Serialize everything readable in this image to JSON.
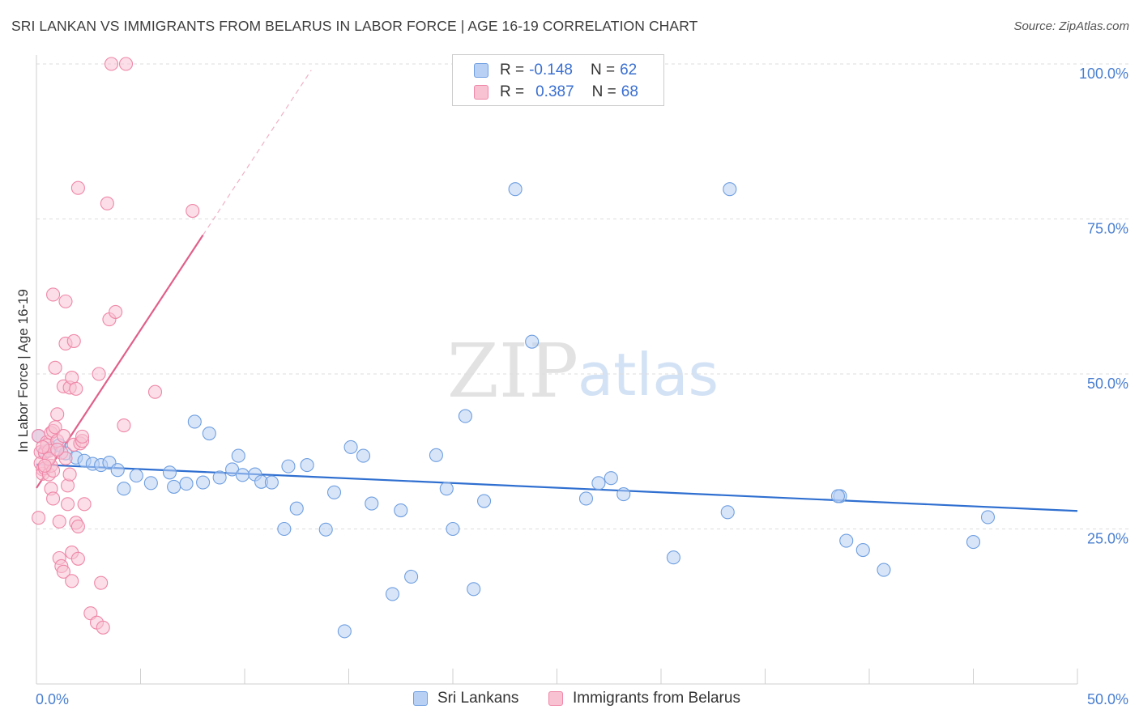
{
  "title": "SRI LANKAN VS IMMIGRANTS FROM BELARUS IN LABOR FORCE | AGE 16-19 CORRELATION CHART",
  "source": "Source: ZipAtlas.com",
  "watermark": {
    "zip": "ZIP",
    "atlas": "atlas"
  },
  "colors": {
    "blue_fill": "#b8d0f4",
    "blue_stroke": "#6f9fe0",
    "blue_line": "#2f6fd0",
    "pink_fill": "#f8c2d3",
    "pink_stroke": "#ef87a8",
    "pink_line": "#e0608a",
    "tick_text": "#4a7fd0",
    "grid": "#dddddd"
  },
  "legend": {
    "rows": [
      {
        "r_label": "R =",
        "r_value": "-0.148",
        "n_label": "N =",
        "n_value": "62"
      },
      {
        "r_label": "R =",
        "r_value": "0.387",
        "n_label": "N =",
        "n_value": "68"
      }
    ]
  },
  "bottom_legend": [
    "Sri Lankans",
    "Immigrants from Belarus"
  ],
  "chart_data": {
    "type": "scatter",
    "title": "SRI LANKAN VS IMMIGRANTS FROM BELARUS IN LABOR FORCE | AGE 16-19 CORRELATION CHART",
    "xlabel": "",
    "ylabel": "In Labor Force | Age 16-19",
    "xlim": [
      0,
      50
    ],
    "ylim": [
      0,
      100
    ],
    "x_tick_labels": [
      "0.0%",
      "50.0%"
    ],
    "y_ticks": [
      25,
      50,
      75,
      100
    ],
    "y_tick_labels": [
      "25.0%",
      "50.0%",
      "75.0%",
      "100.0%"
    ],
    "series": [
      {
        "name": "Sri Lankans",
        "color": "#6f9fe0",
        "trend": {
          "x": [
            0,
            50
          ],
          "y": [
            35.4,
            27.9
          ],
          "style": "solid"
        },
        "points": [
          [
            0.1,
            40.0
          ],
          [
            0.4,
            37.5
          ],
          [
            0.7,
            38.0
          ],
          [
            1.1,
            38.5
          ],
          [
            1.4,
            37.2
          ],
          [
            1.9,
            36.5
          ],
          [
            2.3,
            36.0
          ],
          [
            2.7,
            35.5
          ],
          [
            3.1,
            35.3
          ],
          [
            3.5,
            35.7
          ],
          [
            3.9,
            34.5
          ],
          [
            4.2,
            31.5
          ],
          [
            5.5,
            32.4
          ],
          [
            4.8,
            33.6
          ],
          [
            6.4,
            34.1
          ],
          [
            6.6,
            31.8
          ],
          [
            7.2,
            32.3
          ],
          [
            7.6,
            42.3
          ],
          [
            8.0,
            32.5
          ],
          [
            8.3,
            40.4
          ],
          [
            8.8,
            33.3
          ],
          [
            9.4,
            34.6
          ],
          [
            9.7,
            36.8
          ],
          [
            9.9,
            33.7
          ],
          [
            10.5,
            33.8
          ],
          [
            10.8,
            32.6
          ],
          [
            11.3,
            32.5
          ],
          [
            11.9,
            25.0
          ],
          [
            12.1,
            35.1
          ],
          [
            12.5,
            28.3
          ],
          [
            13.0,
            35.3
          ],
          [
            13.9,
            24.9
          ],
          [
            14.3,
            30.9
          ],
          [
            14.8,
            8.5
          ],
          [
            15.1,
            38.2
          ],
          [
            15.7,
            36.8
          ],
          [
            16.1,
            29.1
          ],
          [
            17.1,
            14.5
          ],
          [
            17.5,
            28.0
          ],
          [
            18.0,
            17.3
          ],
          [
            19.2,
            36.9
          ],
          [
            19.7,
            31.5
          ],
          [
            20.0,
            25.0
          ],
          [
            20.6,
            43.2
          ],
          [
            21.0,
            15.3
          ],
          [
            21.5,
            29.5
          ],
          [
            23.0,
            79.8
          ],
          [
            23.8,
            55.2
          ],
          [
            26.4,
            29.9
          ],
          [
            27.0,
            32.4
          ],
          [
            27.6,
            33.2
          ],
          [
            28.2,
            30.6
          ],
          [
            30.6,
            20.4
          ],
          [
            33.3,
            79.8
          ],
          [
            33.2,
            27.7
          ],
          [
            38.6,
            30.3
          ],
          [
            38.5,
            30.3
          ],
          [
            38.9,
            23.1
          ],
          [
            39.7,
            21.6
          ],
          [
            40.7,
            18.4
          ],
          [
            45.0,
            22.9
          ],
          [
            45.7,
            26.9
          ]
        ]
      },
      {
        "name": "Immigrants from Belarus",
        "color": "#ef87a8",
        "trend": {
          "x": [
            0,
            8
          ],
          "y": [
            31.6,
            72.4
          ],
          "style": "solid",
          "extension": {
            "x": [
              8,
              13.2
            ],
            "y": [
              72.4,
              99.0
            ],
            "style": "dashed"
          }
        },
        "points": [
          [
            0.1,
            40.0
          ],
          [
            0.1,
            26.8
          ],
          [
            0.2,
            37.4
          ],
          [
            0.2,
            35.6
          ],
          [
            0.3,
            34.6
          ],
          [
            0.3,
            33.9
          ],
          [
            0.4,
            34.8
          ],
          [
            0.4,
            37.3
          ],
          [
            0.5,
            39.0
          ],
          [
            0.5,
            38.5
          ],
          [
            0.6,
            37.6
          ],
          [
            0.6,
            33.8
          ],
          [
            0.7,
            40.5
          ],
          [
            0.7,
            35.2
          ],
          [
            0.7,
            31.5
          ],
          [
            0.8,
            34.4
          ],
          [
            0.8,
            29.9
          ],
          [
            0.8,
            40.8
          ],
          [
            0.8,
            62.8
          ],
          [
            0.9,
            41.4
          ],
          [
            0.9,
            51.0
          ],
          [
            1.0,
            43.5
          ],
          [
            1.0,
            39.2
          ],
          [
            1.1,
            26.2
          ],
          [
            1.1,
            20.3
          ],
          [
            1.2,
            37.3
          ],
          [
            1.2,
            19.0
          ],
          [
            1.3,
            40.0
          ],
          [
            1.3,
            18.1
          ],
          [
            1.3,
            48.0
          ],
          [
            1.4,
            61.7
          ],
          [
            1.4,
            54.9
          ],
          [
            1.4,
            36.4
          ],
          [
            1.5,
            32.0
          ],
          [
            1.5,
            29.0
          ],
          [
            1.6,
            47.8
          ],
          [
            1.6,
            33.8
          ],
          [
            1.7,
            49.4
          ],
          [
            1.7,
            21.2
          ],
          [
            1.7,
            16.6
          ],
          [
            1.8,
            55.3
          ],
          [
            1.8,
            38.6
          ],
          [
            1.9,
            26.0
          ],
          [
            1.9,
            47.6
          ],
          [
            2.0,
            80.0
          ],
          [
            2.0,
            20.2
          ],
          [
            2.0,
            25.4
          ],
          [
            2.1,
            38.8
          ],
          [
            2.2,
            39.2
          ],
          [
            2.2,
            39.9
          ],
          [
            2.3,
            29.0
          ],
          [
            2.6,
            11.4
          ],
          [
            2.9,
            9.9
          ],
          [
            3.0,
            50.0
          ],
          [
            3.1,
            16.3
          ],
          [
            3.2,
            9.1
          ],
          [
            3.4,
            77.5
          ],
          [
            3.5,
            58.8
          ],
          [
            3.6,
            100.0
          ],
          [
            3.8,
            60.0
          ],
          [
            4.3,
            100.0
          ],
          [
            4.2,
            41.7
          ],
          [
            5.7,
            47.1
          ],
          [
            7.5,
            76.3
          ],
          [
            0.3,
            38.2
          ],
          [
            0.6,
            36.3
          ],
          [
            1.0,
            37.8
          ],
          [
            0.4,
            35.2
          ]
        ]
      }
    ]
  }
}
